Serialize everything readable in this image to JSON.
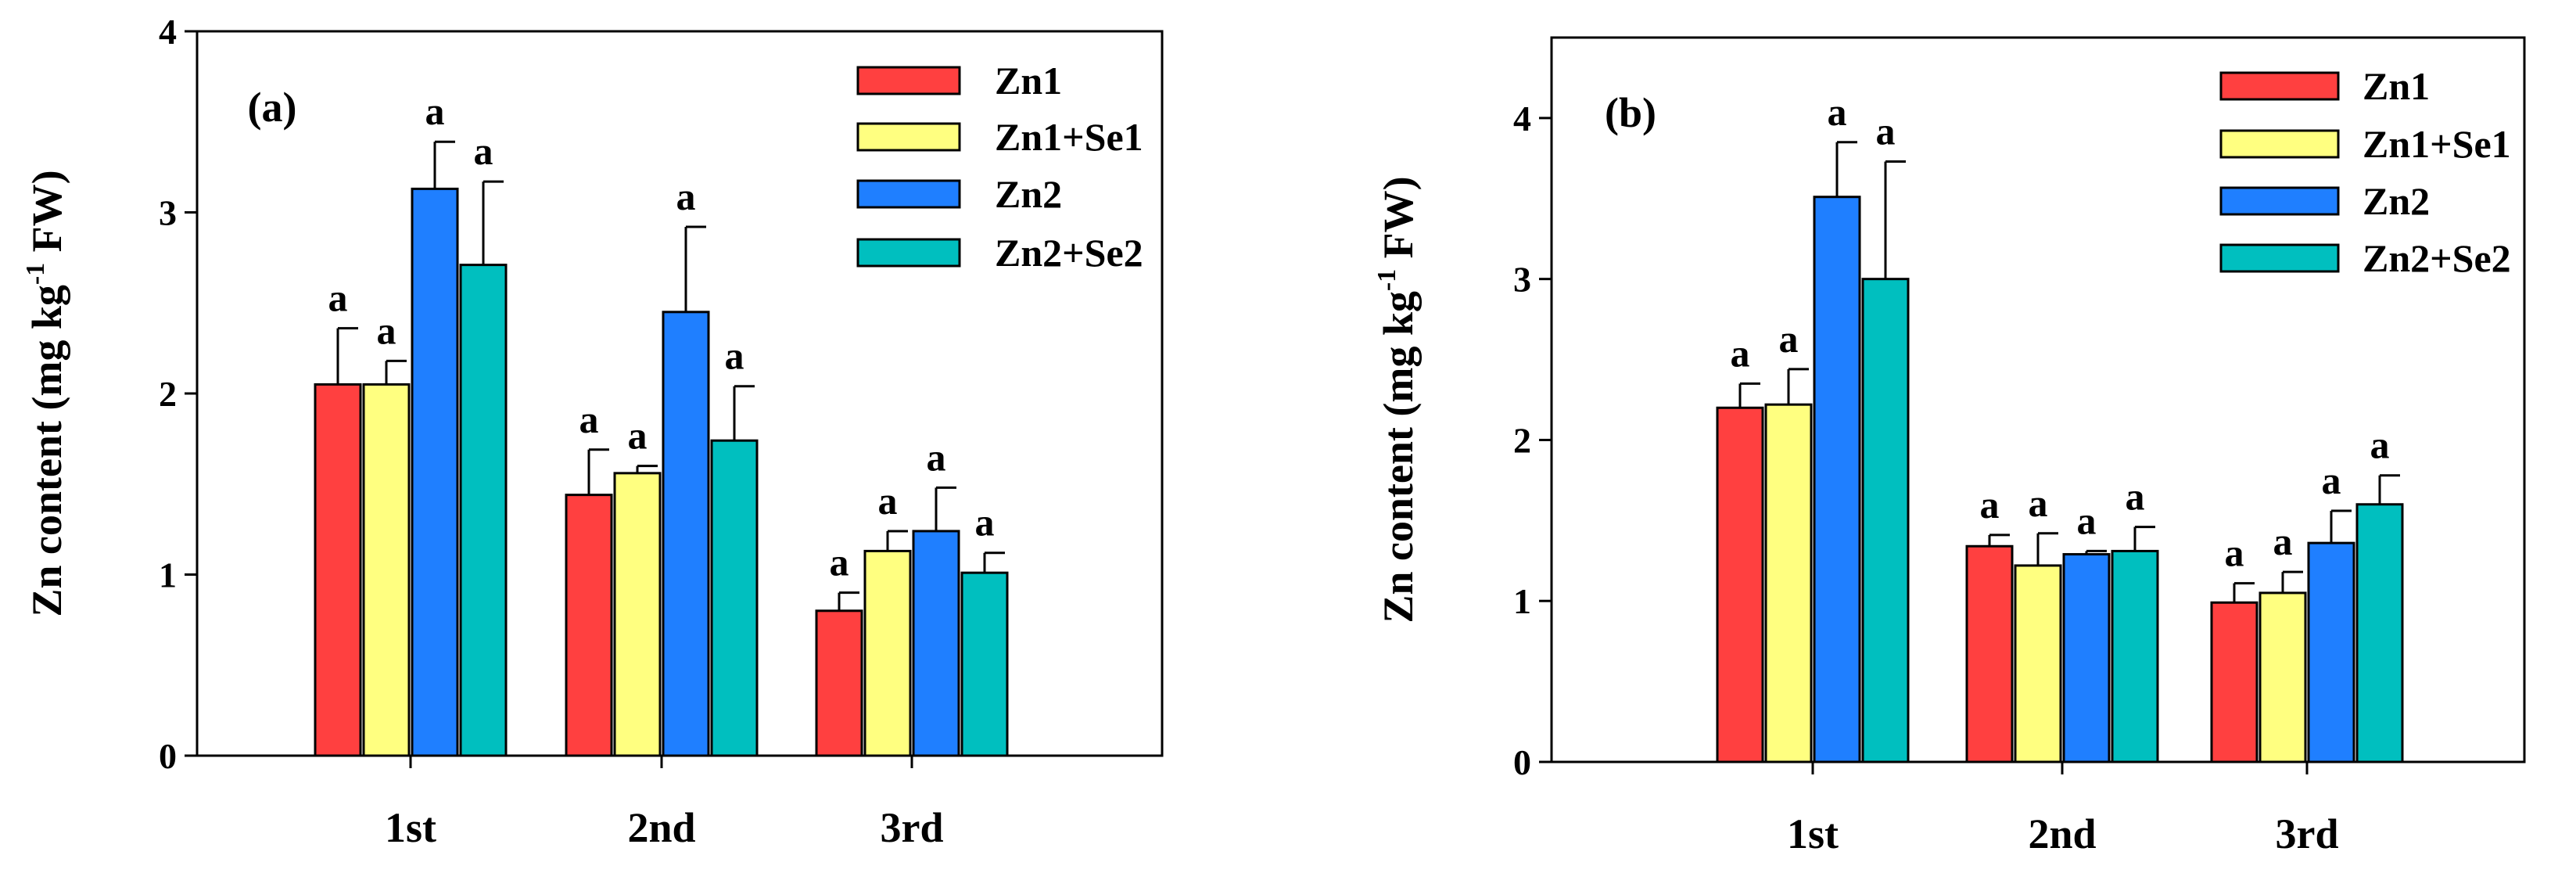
{
  "chart_data": [
    {
      "type": "bar",
      "panel_label": "(a)",
      "ylabel_main": "Zn content (mg kg",
      "ylabel_sup": "-1",
      "ylabel_end": " FW)",
      "xlabel": "",
      "ylim": [
        0,
        4
      ],
      "yticks": [
        "0",
        "1",
        "2",
        "3",
        "4"
      ],
      "categories": [
        "1st",
        "2nd",
        "3rd"
      ],
      "legend_position": "top-right",
      "series": [
        {
          "name": "Zn1",
          "color": "#ff4040",
          "values": [
            2.05,
            1.44,
            0.8
          ],
          "errors": [
            0.31,
            0.25,
            0.1
          ],
          "labels": [
            "a",
            "a",
            "a"
          ]
        },
        {
          "name": "Zn1+Se1",
          "color": "#ffff80",
          "values": [
            2.05,
            1.56,
            1.13
          ],
          "errors": [
            0.13,
            0.04,
            0.11
          ],
          "labels": [
            "a",
            "a",
            "a"
          ]
        },
        {
          "name": "Zn2",
          "color": "#1f7fff",
          "values": [
            3.13,
            2.45,
            1.24
          ],
          "errors": [
            0.26,
            0.47,
            0.24
          ],
          "labels": [
            "a",
            "a",
            "a"
          ]
        },
        {
          "name": "Zn2+Se2",
          "color": "#00bfbf",
          "values": [
            2.71,
            1.74,
            1.01
          ],
          "errors": [
            0.46,
            0.3,
            0.11
          ],
          "labels": [
            "a",
            "a",
            "a"
          ]
        }
      ]
    },
    {
      "type": "bar",
      "panel_label": "(b)",
      "ylabel_main": "Zn content (mg kg",
      "ylabel_sup": "-1",
      "ylabel_end": " FW)",
      "xlabel": "",
      "ylim": [
        0,
        4.5
      ],
      "yticks": [
        "0",
        "1",
        "2",
        "3",
        "4"
      ],
      "categories": [
        "1st",
        "2nd",
        "3rd"
      ],
      "legend_position": "top-right",
      "series": [
        {
          "name": "Zn1",
          "color": "#ff4040",
          "values": [
            2.2,
            1.34,
            0.99
          ],
          "errors": [
            0.15,
            0.07,
            0.12
          ],
          "labels": [
            "a",
            "a",
            "a"
          ]
        },
        {
          "name": "Zn1+Se1",
          "color": "#ffff80",
          "values": [
            2.22,
            1.22,
            1.05
          ],
          "errors": [
            0.22,
            0.2,
            0.13
          ],
          "labels": [
            "a",
            "a",
            "a"
          ]
        },
        {
          "name": "Zn2",
          "color": "#1f7fff",
          "values": [
            3.51,
            1.29,
            1.36
          ],
          "errors": [
            0.34,
            0.02,
            0.2
          ],
          "labels": [
            "a",
            "a",
            "a"
          ]
        },
        {
          "name": "Zn2+Se2",
          "color": "#00bfbf",
          "values": [
            3.0,
            1.31,
            1.6
          ],
          "errors": [
            0.73,
            0.15,
            0.18
          ],
          "labels": [
            "a",
            "a",
            "a"
          ]
        }
      ]
    }
  ]
}
